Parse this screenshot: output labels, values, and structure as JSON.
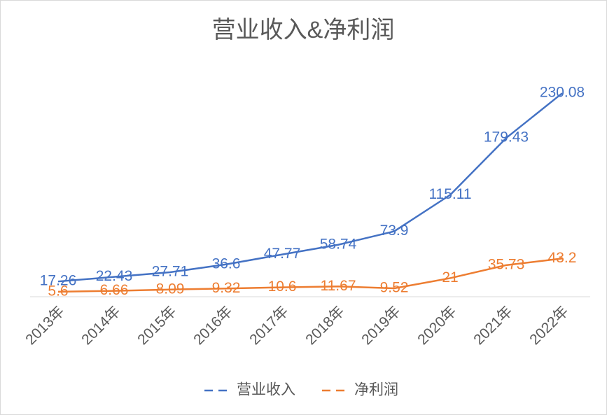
{
  "chart_data": {
    "type": "line",
    "title": "营业收入&净利润",
    "categories": [
      "2013年",
      "2014年",
      "2015年",
      "2016年",
      "2017年",
      "2018年",
      "2019年",
      "2020年",
      "2021年",
      "2022年"
    ],
    "series": [
      {
        "name": "营业收入",
        "color": "#4472c4",
        "values": [
          17.26,
          22.43,
          27.71,
          36.6,
          47.77,
          58.74,
          73.9,
          115.11,
          179.43,
          230.08
        ]
      },
      {
        "name": "净利润",
        "color": "#ed7d31",
        "values": [
          5.6,
          6.66,
          8.09,
          9.32,
          10.6,
          11.67,
          9.52,
          21,
          35.73,
          43.2
        ]
      }
    ],
    "ylim": [
      0,
      250
    ],
    "legend": "bottom"
  }
}
